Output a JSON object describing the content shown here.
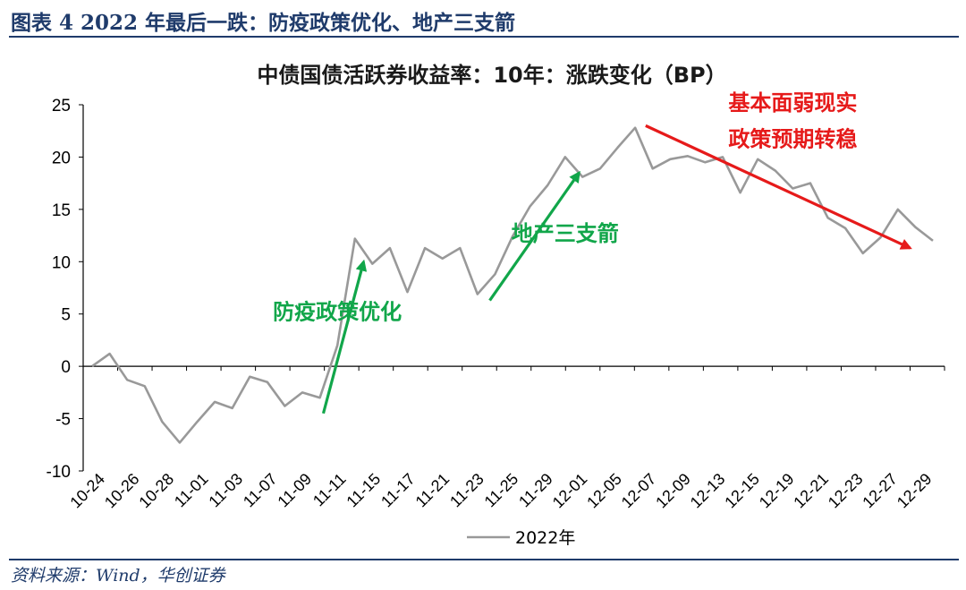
{
  "figure": {
    "caption": "图表 4   2022 年最后一跌：防疫政策优化、地产三支箭",
    "source": "资料来源：Wind，华创证券"
  },
  "chart_data": {
    "type": "line",
    "title": "中债国债活跃券收益率：10年：涨跌变化（BP）",
    "xlabel": "",
    "ylabel": "",
    "ylim": [
      -10,
      25
    ],
    "yticks": [
      -10,
      -5,
      0,
      5,
      10,
      15,
      20,
      25
    ],
    "grid": false,
    "legend_position": "bottom-center",
    "tick_labels": [
      "10-24",
      "10-26",
      "10-28",
      "11-01",
      "11-03",
      "11-07",
      "11-09",
      "11-11",
      "11-15",
      "11-17",
      "11-21",
      "11-23",
      "11-25",
      "11-29",
      "12-01",
      "12-05",
      "12-07",
      "12-09",
      "12-13",
      "12-15",
      "12-19",
      "12-21",
      "12-23",
      "12-27",
      "12-29"
    ],
    "series": [
      {
        "name": "2022年",
        "color": "#999999",
        "values": [
          0,
          1.2,
          -1.3,
          -1.9,
          -5.3,
          -7.3,
          -5.3,
          -3.4,
          -4.0,
          -1.0,
          -1.5,
          -3.8,
          -2.5,
          -3.0,
          2.0,
          12.2,
          9.8,
          11.3,
          7.1,
          11.3,
          10.3,
          11.3,
          6.9,
          8.8,
          12.4,
          15.3,
          17.3,
          20.0,
          18.1,
          18.9,
          20.9,
          22.8,
          18.9,
          19.8,
          20.1,
          19.5,
          20.0,
          16.6,
          19.8,
          18.7,
          17.0,
          17.5,
          14.2,
          13.2,
          10.8,
          12.3,
          15.0,
          13.3,
          12.0
        ]
      }
    ],
    "annotations": [
      {
        "text": "防疫政策优化",
        "color": "#11a64a",
        "x_index": 14,
        "y": 4.5
      },
      {
        "text": "地产三支箭",
        "color": "#11a64a",
        "x_index": 27,
        "y": 12
      },
      {
        "text": "基本面弱现实",
        "color": "#e61a1a",
        "x_index": 40,
        "y": 24.5
      },
      {
        "text": "政策预期转稳",
        "color": "#e61a1a",
        "x_index": 40,
        "y": 21
      }
    ],
    "arrows": [
      {
        "color": "#11a64a",
        "from": {
          "x_index": 13.2,
          "y": -4.5
        },
        "to": {
          "x_index": 15.5,
          "y": 10
        }
      },
      {
        "color": "#11a64a",
        "from": {
          "x_index": 22.7,
          "y": 6.3
        },
        "to": {
          "x_index": 27.8,
          "y": 18.5
        }
      },
      {
        "color": "#e61a1a",
        "from": {
          "x_index": 31.6,
          "y": 23.0
        },
        "to": {
          "x_index": 46.7,
          "y": 11.3
        }
      }
    ]
  }
}
